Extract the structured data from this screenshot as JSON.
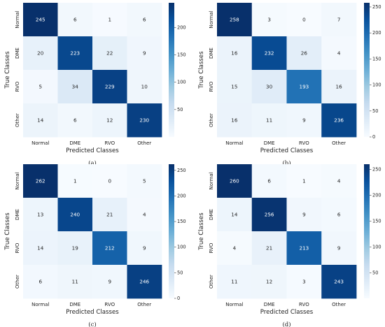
{
  "chart_data": [
    {
      "type": "heatmap",
      "caption": "(a)",
      "xlabel": "Predicted Classes",
      "ylabel": "True Classes",
      "x_categories": [
        "Normal",
        "DME",
        "RVO",
        "Other"
      ],
      "y_categories": [
        "Normal",
        "DME",
        "RVO",
        "Other"
      ],
      "matrix": [
        [
          245,
          6,
          1,
          6
        ],
        [
          20,
          223,
          22,
          9
        ],
        [
          5,
          34,
          229,
          10
        ],
        [
          14,
          6,
          12,
          230
        ]
      ],
      "colorbar": {
        "min": 0,
        "max": 245,
        "ticks": [
          50,
          100,
          150,
          200
        ]
      }
    },
    {
      "type": "heatmap",
      "caption": "(b)",
      "xlabel": "Predicted Classes",
      "ylabel": "True Classes",
      "x_categories": [
        "Normal",
        "DME",
        "RVO",
        "Other"
      ],
      "y_categories": [
        "Normal",
        "DME",
        "RVO",
        "Other"
      ],
      "matrix": [
        [
          258,
          3,
          0,
          7
        ],
        [
          16,
          232,
          26,
          4
        ],
        [
          15,
          30,
          193,
          16
        ],
        [
          16,
          11,
          9,
          236
        ]
      ],
      "colorbar": {
        "min": 0,
        "max": 258,
        "ticks": [
          0,
          50,
          100,
          150,
          200,
          250
        ]
      }
    },
    {
      "type": "heatmap",
      "caption": "(c)",
      "xlabel": "Predicted Classes",
      "ylabel": "True Classes",
      "x_categories": [
        "Normal",
        "DME",
        "RVO",
        "Other"
      ],
      "y_categories": [
        "Normal",
        "DME",
        "RVO",
        "Other"
      ],
      "matrix": [
        [
          262,
          1,
          0,
          5
        ],
        [
          13,
          240,
          21,
          4
        ],
        [
          14,
          19,
          212,
          9
        ],
        [
          6,
          11,
          9,
          246
        ]
      ],
      "colorbar": {
        "min": 0,
        "max": 262,
        "ticks": [
          0,
          50,
          100,
          150,
          200,
          250
        ]
      }
    },
    {
      "type": "heatmap",
      "caption": "(d)",
      "xlabel": "Predicted Classes",
      "ylabel": "True Classes",
      "x_categories": [
        "Normal",
        "DME",
        "RVO",
        "Other"
      ],
      "y_categories": [
        "Normal",
        "DME",
        "RVO",
        "Other"
      ],
      "matrix": [
        [
          260,
          6,
          1,
          4
        ],
        [
          14,
          256,
          9,
          6
        ],
        [
          4,
          21,
          213,
          9
        ],
        [
          11,
          12,
          3,
          243
        ]
      ],
      "colorbar": {
        "min": 1,
        "max": 260,
        "ticks": [
          50,
          100,
          150,
          200,
          250
        ]
      }
    }
  ],
  "colors": {
    "low": "#f7fbff",
    "high": "#08306b",
    "text_dark": "#262626",
    "text_light": "#ffffff"
  }
}
